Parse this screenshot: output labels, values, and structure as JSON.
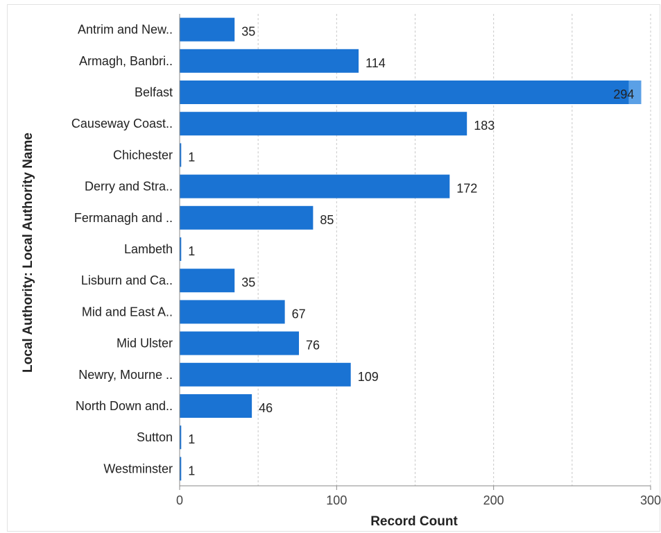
{
  "chart_data": {
    "type": "bar",
    "orientation": "horizontal",
    "title": "",
    "xlabel": "Record Count",
    "ylabel": "Local Authority: Local Authority Name",
    "xlim": [
      0,
      300
    ],
    "xticks": [
      0,
      100,
      200,
      300
    ],
    "grid": "vertical dashed every 50",
    "categories": [
      "Antrim and New..",
      "Armagh, Banbri..",
      "Belfast",
      "Causeway Coast..",
      "Chichester",
      "Derry and Stra..",
      "Fermanagh and ..",
      "Lambeth",
      "Lisburn and Ca..",
      "Mid and East A..",
      "Mid Ulster",
      "Newry, Mourne ..",
      "North Down and..",
      "Sutton",
      "Westminster"
    ],
    "values": [
      35,
      114,
      294,
      183,
      1,
      172,
      85,
      1,
      35,
      67,
      76,
      109,
      46,
      1,
      1
    ],
    "bar_color": "#1a73d3",
    "highlight_color": "#5aa0e6"
  }
}
